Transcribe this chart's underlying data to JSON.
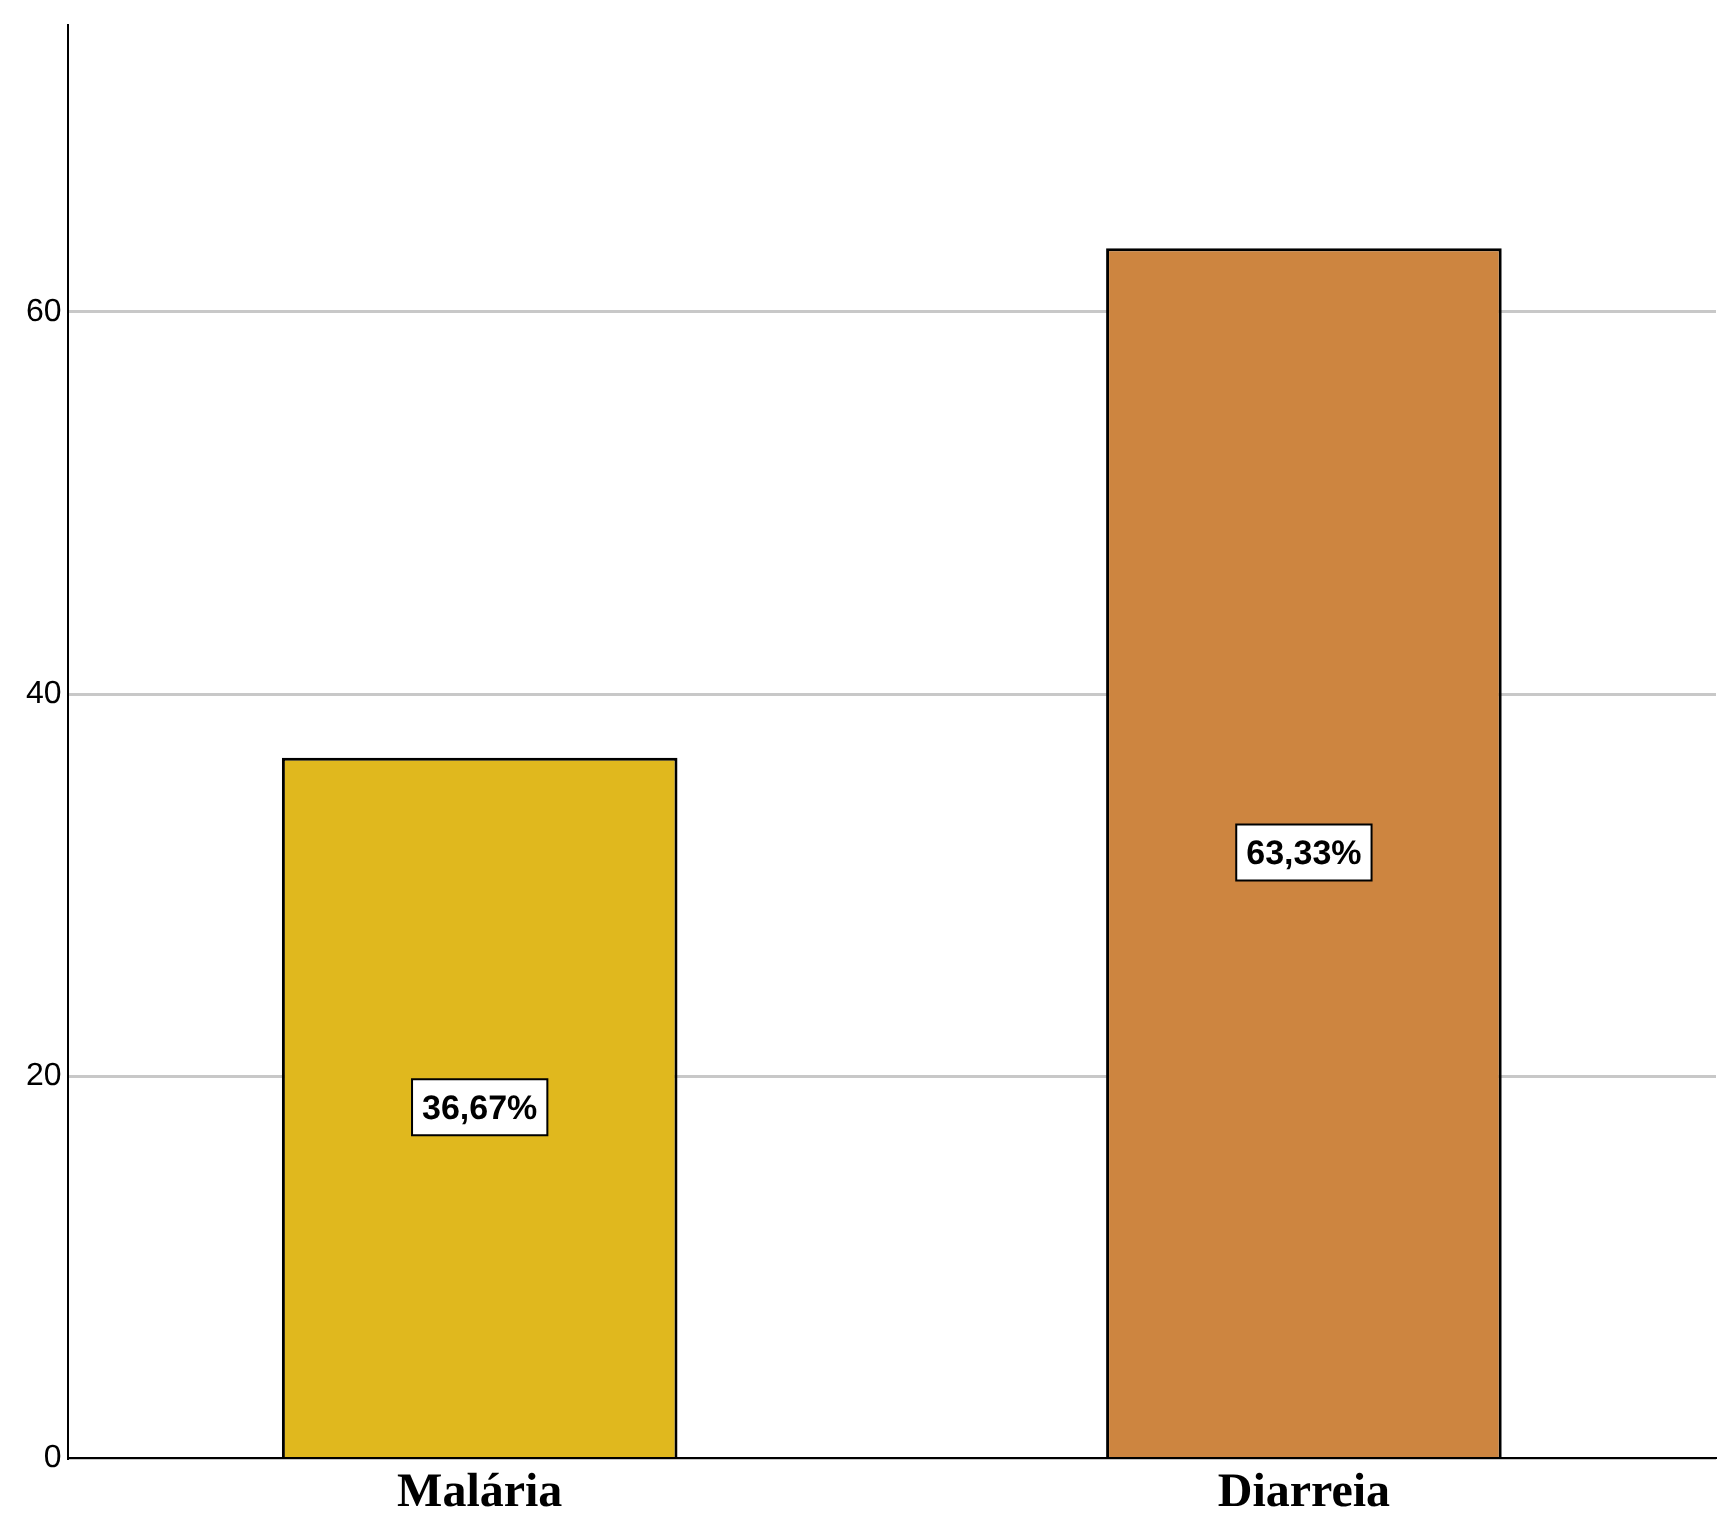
{
  "chart_data": {
    "type": "bar",
    "categories": [
      "Malária",
      "Diarreia"
    ],
    "values": [
      36.67,
      63.33
    ],
    "colors": [
      "#e0b81e",
      "#cd8540"
    ],
    "value_labels": [
      "36,67%",
      "63,33%"
    ],
    "ylim": [
      0,
      75
    ],
    "yticks": [
      0,
      20,
      40,
      60
    ],
    "grid": "y"
  }
}
